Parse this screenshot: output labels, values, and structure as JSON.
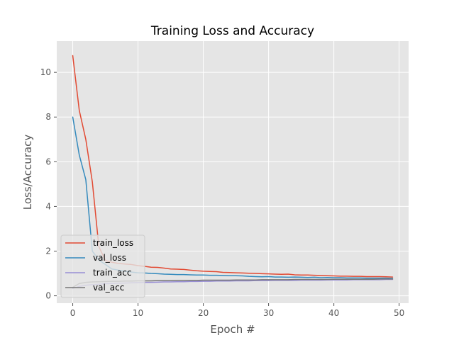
{
  "chart_data": {
    "type": "line",
    "title": "Training Loss and Accuracy",
    "xlabel": "Epoch #",
    "ylabel": "Loss/Accuracy",
    "xlim": [
      -2.45,
      51.45
    ],
    "ylim": [
      -0.33,
      11.4
    ],
    "xticks": [
      0,
      10,
      20,
      30,
      40,
      50
    ],
    "yticks": [
      0,
      2,
      4,
      6,
      8,
      10
    ],
    "grid": true,
    "style": "ggplot",
    "legend_position": "lower-left",
    "x": [
      0,
      1,
      2,
      3,
      4,
      5,
      6,
      7,
      8,
      9,
      10,
      11,
      12,
      13,
      14,
      15,
      16,
      17,
      18,
      19,
      20,
      21,
      22,
      23,
      24,
      25,
      26,
      27,
      28,
      29,
      30,
      31,
      32,
      33,
      34,
      35,
      36,
      37,
      38,
      39,
      40,
      41,
      42,
      43,
      44,
      45,
      46,
      47,
      48,
      49
    ],
    "series": [
      {
        "name": "train_loss",
        "color": "#E24A33",
        "values": [
          10.75,
          8.3,
          7.0,
          5.1,
          2.2,
          1.58,
          1.5,
          1.45,
          1.42,
          1.4,
          1.35,
          1.32,
          1.28,
          1.27,
          1.24,
          1.2,
          1.19,
          1.18,
          1.15,
          1.12,
          1.1,
          1.09,
          1.08,
          1.05,
          1.04,
          1.03,
          1.02,
          1.01,
          1.0,
          0.99,
          0.98,
          0.97,
          0.96,
          0.97,
          0.94,
          0.93,
          0.93,
          0.92,
          0.91,
          0.9,
          0.89,
          0.88,
          0.88,
          0.87,
          0.87,
          0.86,
          0.86,
          0.86,
          0.85,
          0.84
        ]
      },
      {
        "name": "val_loss",
        "color": "#348ABD",
        "values": [
          8.0,
          6.3,
          5.2,
          2.0,
          1.6,
          1.4,
          1.2,
          1.15,
          1.1,
          1.06,
          1.03,
          1.02,
          1.0,
          0.99,
          0.97,
          0.96,
          0.95,
          0.95,
          0.94,
          0.93,
          0.93,
          0.92,
          0.92,
          0.91,
          0.9,
          0.9,
          0.89,
          0.87,
          0.86,
          0.85,
          0.86,
          0.84,
          0.84,
          0.83,
          0.84,
          0.83,
          0.82,
          0.83,
          0.81,
          0.82,
          0.81,
          0.81,
          0.8,
          0.8,
          0.8,
          0.79,
          0.79,
          0.79,
          0.79,
          0.78
        ]
      },
      {
        "name": "train_acc",
        "color": "#988ED5",
        "values": [
          0.33,
          0.42,
          0.47,
          0.5,
          0.52,
          0.54,
          0.55,
          0.56,
          0.57,
          0.58,
          0.59,
          0.6,
          0.6,
          0.61,
          0.62,
          0.62,
          0.63,
          0.63,
          0.64,
          0.64,
          0.65,
          0.65,
          0.66,
          0.66,
          0.66,
          0.67,
          0.67,
          0.67,
          0.68,
          0.68,
          0.68,
          0.69,
          0.69,
          0.69,
          0.69,
          0.7,
          0.7,
          0.7,
          0.7,
          0.71,
          0.71,
          0.71,
          0.71,
          0.72,
          0.72,
          0.72,
          0.72,
          0.72,
          0.73,
          0.73
        ]
      },
      {
        "name": "val_acc",
        "color": "#777777",
        "values": [
          0.38,
          0.55,
          0.6,
          0.62,
          0.63,
          0.64,
          0.65,
          0.65,
          0.66,
          0.66,
          0.67,
          0.67,
          0.67,
          0.68,
          0.68,
          0.68,
          0.69,
          0.69,
          0.69,
          0.69,
          0.7,
          0.7,
          0.7,
          0.7,
          0.7,
          0.71,
          0.71,
          0.71,
          0.71,
          0.72,
          0.72,
          0.72,
          0.72,
          0.72,
          0.73,
          0.73,
          0.73,
          0.73,
          0.73,
          0.73,
          0.74,
          0.74,
          0.74,
          0.74,
          0.74,
          0.74,
          0.74,
          0.75,
          0.75,
          0.75
        ]
      }
    ]
  },
  "colors": {
    "figure_background": "#FFFFFF",
    "plot_background": "#E5E5E5",
    "grid": "#FFFFFF",
    "tick_text": "#555555",
    "title_text": "#000000",
    "legend_background": "#E5E5E5",
    "legend_border": "#CCCCCC"
  }
}
